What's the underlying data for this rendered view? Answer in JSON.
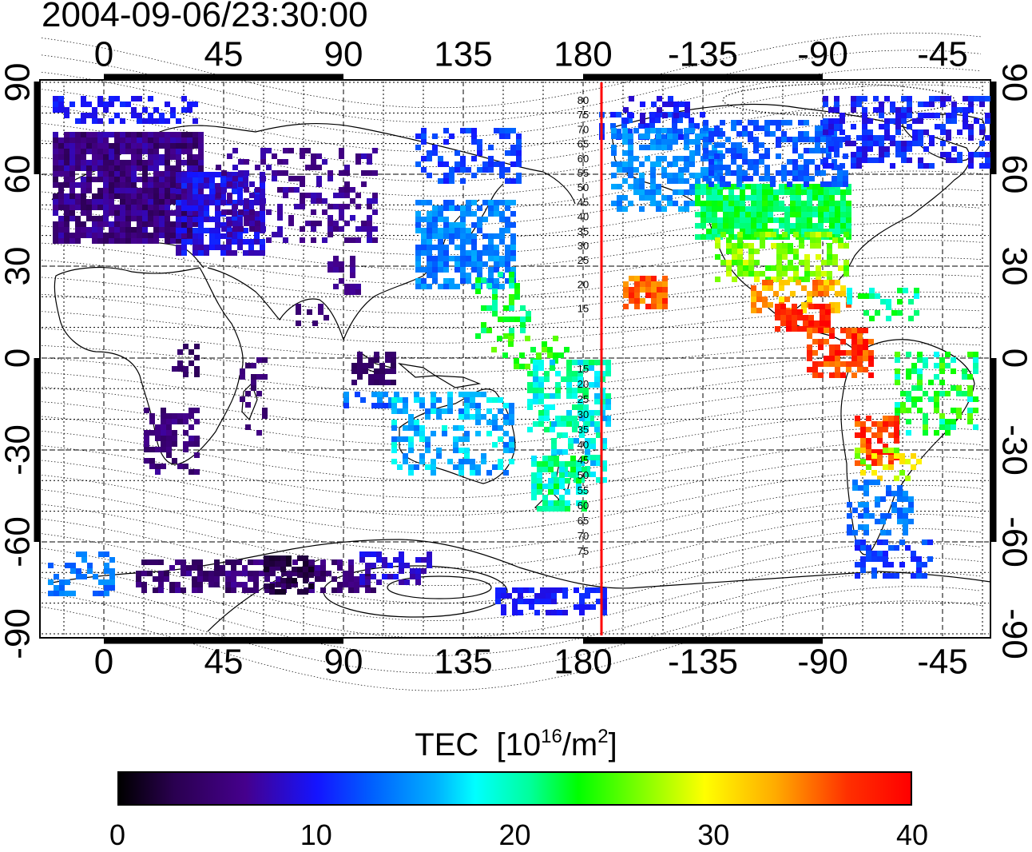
{
  "title": "2004-09-06/23:30:00",
  "map": {
    "lon_ticks_top": [
      "0",
      "45",
      "90",
      "135",
      "180",
      "-135",
      "-90",
      "-45"
    ],
    "lon_ticks_bottom": [
      "0",
      "45",
      "90",
      "135",
      "180",
      "-135",
      "-90",
      "-45"
    ],
    "lat_ticks_left": [
      "90",
      "60",
      "30",
      "0",
      "-30",
      "-60",
      "-90"
    ],
    "lat_ticks_right": [
      "90",
      "60",
      "30",
      "0",
      "-30",
      "-60",
      "-90"
    ],
    "mlat_north": [
      "80",
      "75",
      "70",
      "65",
      "60",
      "55",
      "50",
      "45",
      "40",
      "35",
      "30",
      "25",
      "20",
      "15"
    ],
    "mlat_south": [
      "15",
      "20",
      "25",
      "30",
      "35",
      "40",
      "45",
      "50",
      "55",
      "60",
      "65",
      "70",
      "75"
    ],
    "red_line_longitude": -170
  },
  "colorbar": {
    "label": "TEC",
    "unit_main": "[10",
    "unit_exp": "16",
    "unit_mid": "/m",
    "unit_exp2": "2",
    "unit_end": "]",
    "ticks": [
      "0",
      "10",
      "20",
      "30",
      "40"
    ],
    "min": 0,
    "max": 40
  },
  "colors": {
    "line_marker": "#ff0000"
  }
}
